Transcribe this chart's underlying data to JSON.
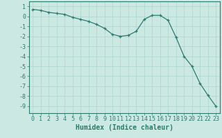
{
  "x": [
    0,
    1,
    2,
    3,
    4,
    5,
    6,
    7,
    8,
    9,
    10,
    11,
    12,
    13,
    14,
    15,
    16,
    17,
    18,
    19,
    20,
    21,
    22,
    23
  ],
  "y": [
    0.7,
    0.6,
    0.4,
    0.3,
    0.2,
    -0.1,
    -0.3,
    -0.5,
    -0.8,
    -1.2,
    -1.8,
    -2.0,
    -1.9,
    -1.5,
    -0.3,
    0.1,
    0.1,
    -0.4,
    -2.1,
    -4.0,
    -5.0,
    -6.7,
    -7.9,
    -9.0
  ],
  "line_color": "#2d7a6e",
  "marker": "+",
  "marker_color": "#2d7a6e",
  "bg_color": "#cce8e2",
  "grid_color": "#aad4cc",
  "xlabel": "Humidex (Indice chaleur)",
  "xlim": [
    -0.5,
    23.5
  ],
  "ylim": [
    -9.7,
    1.5
  ],
  "yticks": [
    1,
    0,
    -1,
    -2,
    -3,
    -4,
    -5,
    -6,
    -7,
    -8,
    -9
  ],
  "xticks": [
    0,
    1,
    2,
    3,
    4,
    5,
    6,
    7,
    8,
    9,
    10,
    11,
    12,
    13,
    14,
    15,
    16,
    17,
    18,
    19,
    20,
    21,
    22,
    23
  ],
  "tick_color": "#2d7a6e",
  "label_color": "#2d7a6e",
  "axis_color": "#2d7a6e",
  "xlabel_fontsize": 7,
  "tick_fontsize": 6
}
